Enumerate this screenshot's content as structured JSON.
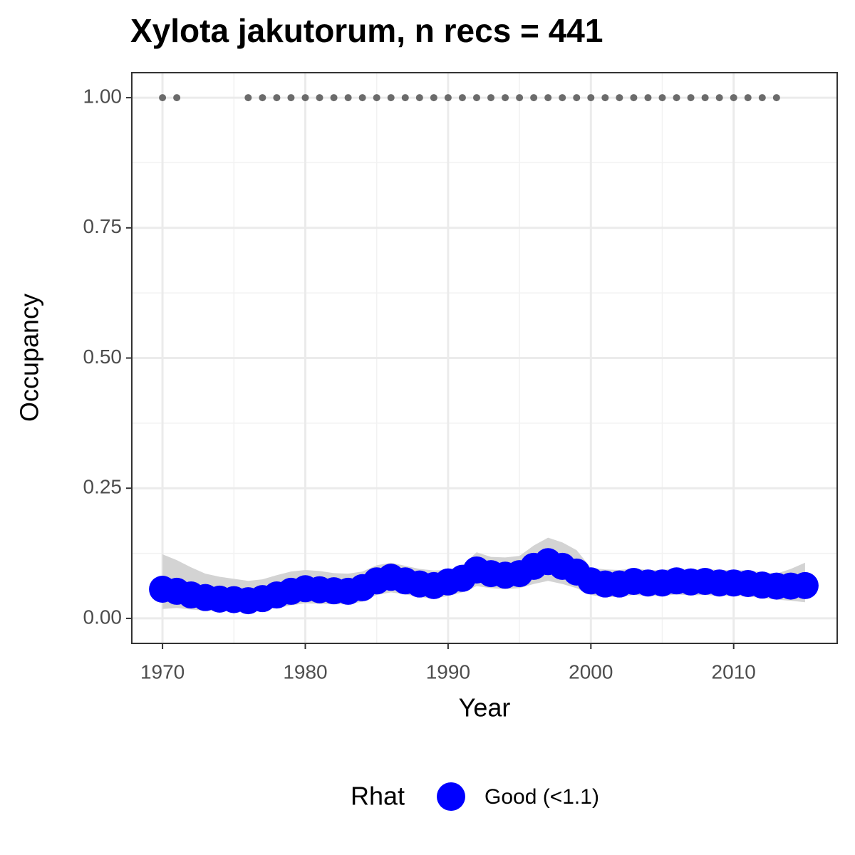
{
  "chart_data": {
    "type": "line",
    "title": "Xylota jakutorum, n recs = 441",
    "x_label": "Year",
    "y_label": "Occupancy",
    "legend_title": "Rhat",
    "x": [
      1970,
      1971,
      1972,
      1973,
      1974,
      1975,
      1976,
      1977,
      1978,
      1979,
      1980,
      1981,
      1982,
      1983,
      1984,
      1985,
      1986,
      1987,
      1988,
      1989,
      1990,
      1991,
      1992,
      1993,
      1994,
      1995,
      1996,
      1997,
      1998,
      1999,
      2000,
      2001,
      2002,
      2003,
      2004,
      2005,
      2006,
      2007,
      2008,
      2009,
      2010,
      2011,
      2012,
      2013,
      2014,
      2015
    ],
    "series": [
      {
        "name": "Good (<1.1)",
        "color": "#0000ff",
        "values": [
          0.056,
          0.052,
          0.045,
          0.04,
          0.037,
          0.036,
          0.034,
          0.038,
          0.045,
          0.052,
          0.057,
          0.055,
          0.053,
          0.052,
          0.059,
          0.072,
          0.079,
          0.072,
          0.066,
          0.063,
          0.07,
          0.077,
          0.093,
          0.086,
          0.083,
          0.086,
          0.1,
          0.109,
          0.1,
          0.089,
          0.072,
          0.066,
          0.066,
          0.071,
          0.068,
          0.068,
          0.072,
          0.07,
          0.071,
          0.068,
          0.068,
          0.067,
          0.064,
          0.062,
          0.062,
          0.063
        ],
        "upper": [
          0.123,
          0.112,
          0.098,
          0.086,
          0.08,
          0.076,
          0.072,
          0.075,
          0.083,
          0.09,
          0.093,
          0.091,
          0.087,
          0.086,
          0.09,
          0.102,
          0.107,
          0.101,
          0.095,
          0.092,
          0.093,
          0.102,
          0.127,
          0.118,
          0.117,
          0.12,
          0.14,
          0.155,
          0.146,
          0.131,
          0.097,
          0.094,
          0.093,
          0.096,
          0.093,
          0.093,
          0.096,
          0.094,
          0.095,
          0.093,
          0.093,
          0.092,
          0.089,
          0.086,
          0.095,
          0.107
        ],
        "lower": [
          0.018,
          0.02,
          0.017,
          0.015,
          0.014,
          0.014,
          0.014,
          0.016,
          0.02,
          0.025,
          0.029,
          0.028,
          0.027,
          0.027,
          0.032,
          0.045,
          0.05,
          0.046,
          0.041,
          0.038,
          0.043,
          0.05,
          0.062,
          0.058,
          0.056,
          0.058,
          0.066,
          0.072,
          0.066,
          0.058,
          0.045,
          0.041,
          0.041,
          0.045,
          0.043,
          0.043,
          0.046,
          0.044,
          0.045,
          0.043,
          0.043,
          0.042,
          0.039,
          0.036,
          0.034,
          0.031
        ],
        "band_color": "#d3d3d3"
      }
    ],
    "records": {
      "color": "#6b6b6b",
      "x": [
        1970,
        1971,
        1976,
        1977,
        1978,
        1979,
        1980,
        1981,
        1982,
        1983,
        1984,
        1985,
        1986,
        1987,
        1988,
        1989,
        1990,
        1991,
        1992,
        1993,
        1994,
        1995,
        1996,
        1997,
        1998,
        1999,
        2000,
        2001,
        2002,
        2003,
        2004,
        2005,
        2006,
        2007,
        2008,
        2009,
        2010,
        2011,
        2012,
        2013
      ],
      "values": [
        1,
        1,
        1,
        1,
        1,
        1,
        1,
        1,
        1,
        1,
        1,
        1,
        1,
        1,
        1,
        1,
        1,
        1,
        1,
        1,
        1,
        1,
        1,
        1,
        1,
        1,
        1,
        1,
        1,
        1,
        1,
        1,
        1,
        1,
        1,
        1,
        1,
        1,
        1,
        1
      ]
    },
    "xlim": [
      1967.85,
      2017.25
    ],
    "ylim": [
      -0.048,
      1.048
    ],
    "xticks": [
      1970,
      1980,
      1990,
      2000,
      2010
    ],
    "yticks": [
      {
        "value": 0,
        "label": "0.00"
      },
      {
        "value": 0.25,
        "label": "0.25"
      },
      {
        "value": 0.5,
        "label": "0.50"
      },
      {
        "value": 0.75,
        "label": "0.75"
      },
      {
        "value": 1,
        "label": "1.00"
      }
    ],
    "grid": true
  }
}
